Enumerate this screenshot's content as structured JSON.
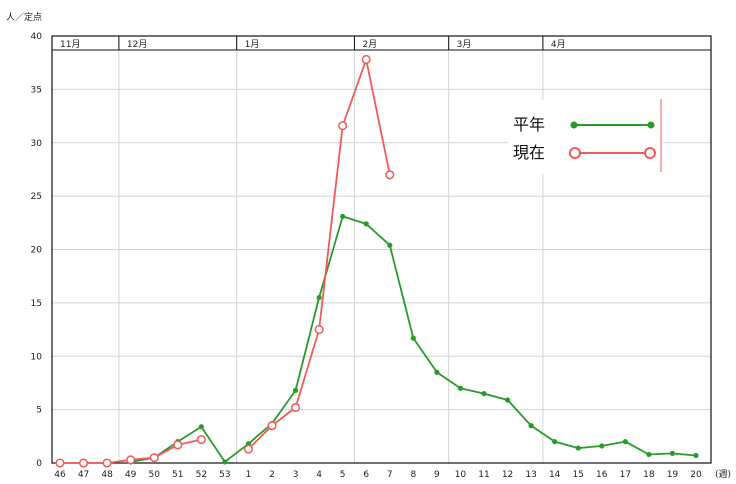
{
  "chart_data": {
    "type": "line",
    "title": "",
    "ylabel": "人／定点",
    "xlabel": "(週)",
    "ylim": [
      0,
      40
    ],
    "yticks": [
      0,
      5,
      10,
      15,
      20,
      25,
      30,
      35,
      40
    ],
    "ytick_labels": [
      "0",
      "5",
      "10",
      "15",
      "20",
      "25",
      "30",
      "35",
      "40"
    ],
    "months": [
      "11月",
      "12月",
      "1月",
      "2月",
      "3月",
      "4月"
    ],
    "month_start_index": [
      0,
      3,
      8,
      13,
      17,
      21
    ],
    "categories": [
      "46",
      "47",
      "48",
      "49",
      "50",
      "51",
      "52",
      "53",
      "1",
      "2",
      "3",
      "4",
      "5",
      "6",
      "7",
      "8",
      "9",
      "10",
      "11",
      "12",
      "13",
      "14",
      "15",
      "16",
      "17",
      "18",
      "19",
      "20"
    ],
    "series": [
      {
        "name": "平年",
        "color": "#2a9a2a",
        "marker": "dot",
        "values": [
          null,
          null,
          null,
          0.1,
          0.5,
          2.0,
          3.4,
          0.1,
          1.8,
          3.7,
          6.8,
          15.5,
          23.1,
          22.4,
          20.4,
          11.7,
          8.5,
          7.0,
          6.5,
          5.9,
          3.5,
          2.0,
          1.4,
          1.6,
          2.0,
          0.8,
          0.9,
          0.7
        ]
      },
      {
        "name": "現在",
        "color": "#f25a5a",
        "marker": "open-circle",
        "values": [
          0,
          0,
          0,
          0.3,
          0.5,
          1.7,
          2.2,
          null,
          1.3,
          3.5,
          5.2,
          12.5,
          31.6,
          37.8,
          27.0,
          null,
          null,
          null,
          null,
          null,
          null,
          null,
          null,
          null,
          null,
          null,
          null,
          null
        ]
      }
    ],
    "legend_position": "top-right",
    "grid": true
  }
}
